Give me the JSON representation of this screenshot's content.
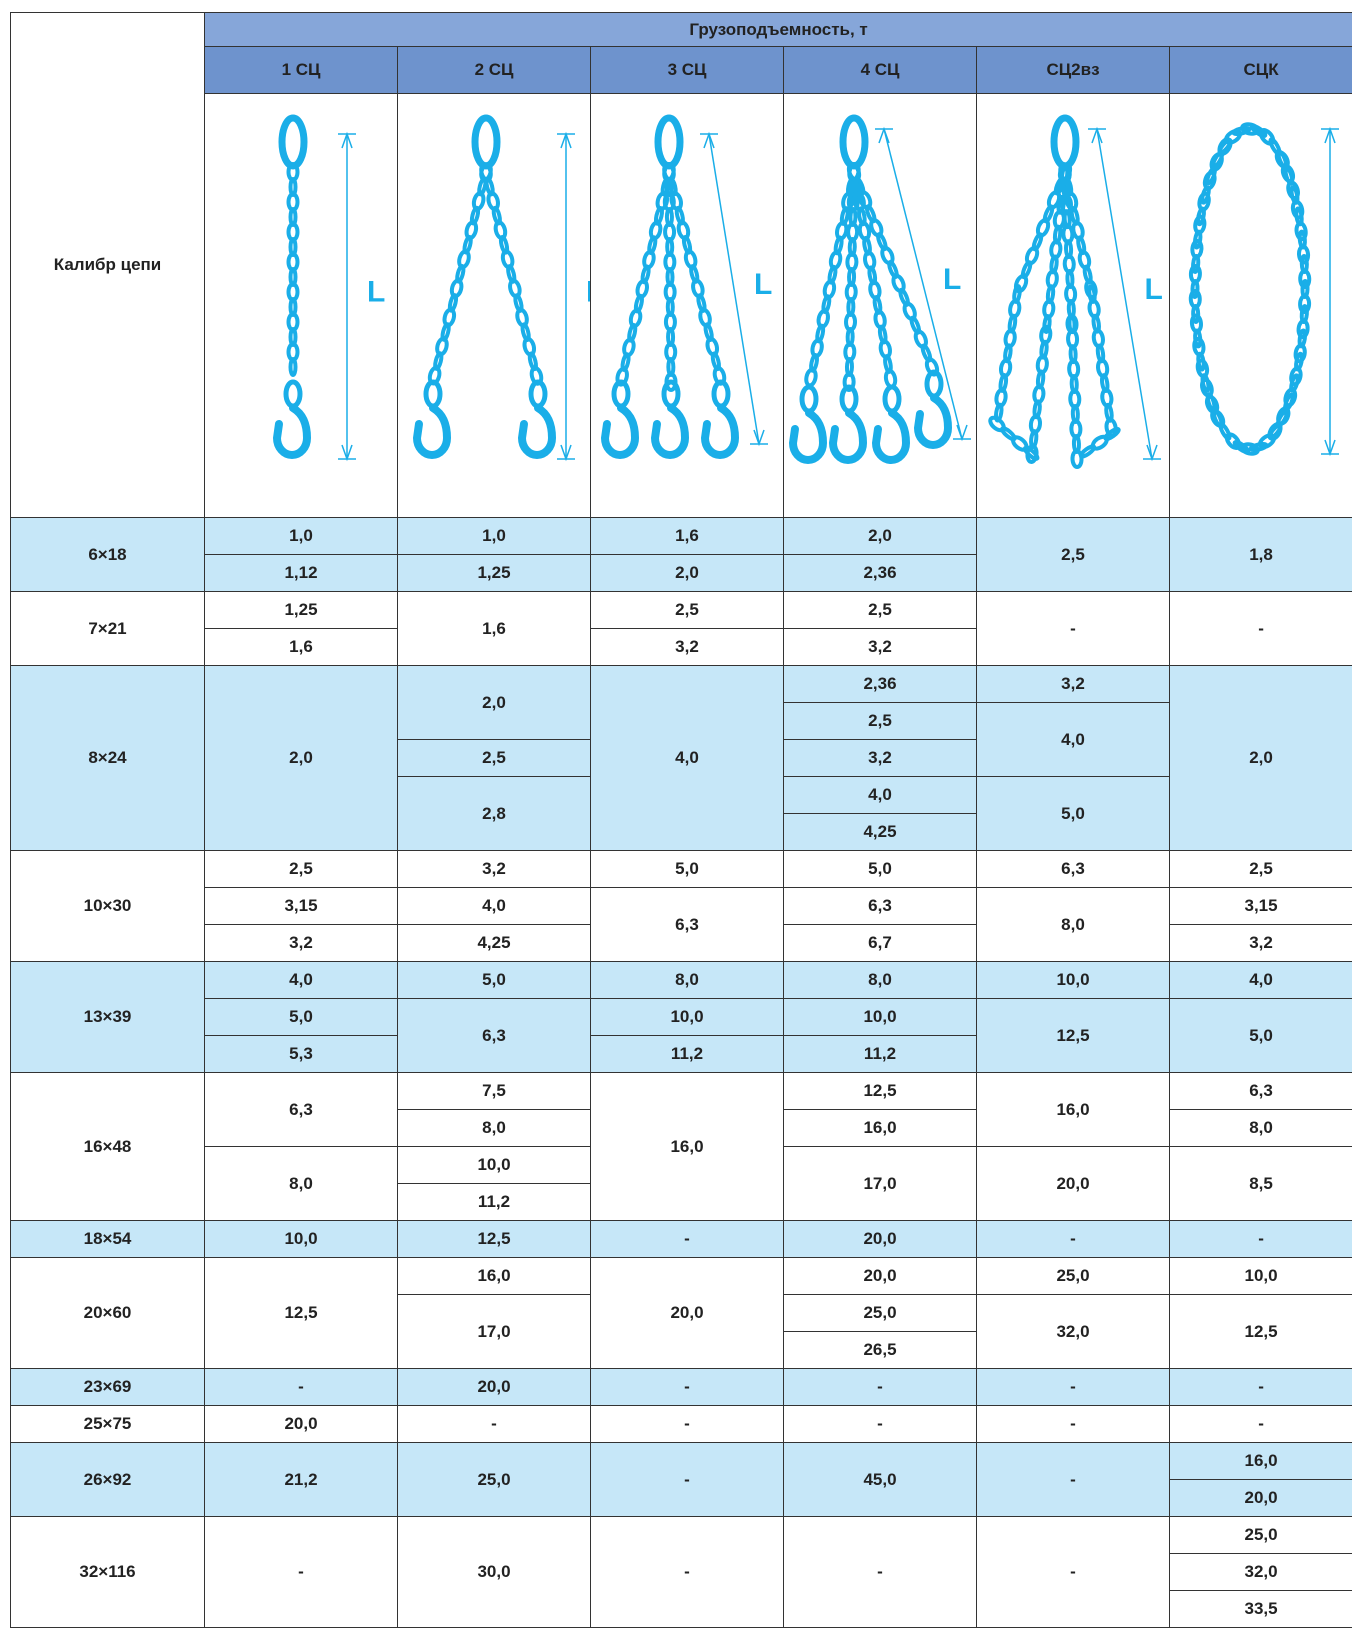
{
  "header": {
    "corner": "Калибр цепи",
    "group_title": "Грузоподъемность, т",
    "columns": [
      "1 СЦ",
      "2 СЦ",
      "3 СЦ",
      "4 СЦ",
      "СЦ2вз",
      "СЦК"
    ],
    "illustration_label": "L"
  },
  "table": {
    "groups": [
      {
        "caliber": "6×18",
        "rows": [
          [
            "1,0",
            "1,0",
            "1,6",
            "2,0",
            "2,5",
            "1,8"
          ],
          [
            "1,12",
            "1,25",
            "2,0",
            "2,36",
            null,
            null
          ]
        ]
      },
      {
        "caliber": "7×21",
        "rows": [
          [
            "1,25",
            "1,6",
            "2,5",
            "2,5",
            "-",
            "-"
          ],
          [
            "1,6",
            null,
            "3,2",
            "3,2",
            null,
            null
          ]
        ]
      },
      {
        "caliber": "8×24",
        "rows": [
          [
            "2,0",
            "2,0",
            "4,0",
            "2,36",
            "3,2",
            "2,0"
          ],
          [
            null,
            null,
            null,
            "2,5",
            "4,0",
            null
          ],
          [
            null,
            "2,5",
            null,
            "3,2",
            null,
            null
          ],
          [
            null,
            "2,8",
            null,
            "4,0",
            "5,0",
            null
          ],
          [
            null,
            null,
            null,
            "4,25",
            null,
            null
          ]
        ]
      },
      {
        "caliber": "10×30",
        "rows": [
          [
            "2,5",
            "3,2",
            "5,0",
            "5,0",
            "6,3",
            "2,5"
          ],
          [
            "3,15",
            "4,0",
            "6,3",
            "6,3",
            "8,0",
            "3,15"
          ],
          [
            "3,2",
            "4,25",
            null,
            "6,7",
            null,
            "3,2"
          ]
        ]
      },
      {
        "caliber": "13×39",
        "rows": [
          [
            "4,0",
            "5,0",
            "8,0",
            "8,0",
            "10,0",
            "4,0"
          ],
          [
            "5,0",
            "6,3",
            "10,0",
            "10,0",
            "12,5",
            "5,0"
          ],
          [
            "5,3",
            null,
            "11,2",
            "11,2",
            null,
            null
          ]
        ]
      },
      {
        "caliber": "16×48",
        "rows": [
          [
            "6,3",
            "7,5",
            "16,0",
            "12,5",
            "16,0",
            "6,3"
          ],
          [
            null,
            "8,0",
            null,
            "16,0",
            null,
            "8,0"
          ],
          [
            "8,0",
            "10,0",
            null,
            "17,0",
            "20,0",
            "8,5"
          ],
          [
            null,
            "11,2",
            null,
            null,
            null,
            null
          ]
        ]
      },
      {
        "caliber": "18×54",
        "rows": [
          [
            "10,0",
            "12,5",
            "-",
            "20,0",
            "-",
            "-"
          ]
        ]
      },
      {
        "caliber": "20×60",
        "rows": [
          [
            "12,5",
            "16,0",
            "20,0",
            "20,0",
            "25,0",
            "10,0"
          ],
          [
            null,
            "17,0",
            null,
            "25,0",
            "32,0",
            "12,5"
          ],
          [
            null,
            null,
            null,
            "26,5",
            null,
            null
          ]
        ]
      },
      {
        "caliber": "23×69",
        "rows": [
          [
            "-",
            "20,0",
            "-",
            "-",
            "-",
            "-"
          ]
        ]
      },
      {
        "caliber": "25×75",
        "rows": [
          [
            "20,0",
            "-",
            "-",
            "-",
            "-",
            "-"
          ]
        ]
      },
      {
        "caliber": "26×92",
        "rows": [
          [
            "21,2",
            "25,0",
            "-",
            "45,0",
            "-",
            "16,0"
          ],
          [
            null,
            null,
            null,
            null,
            null,
            "20,0"
          ]
        ]
      },
      {
        "caliber": "32×116",
        "rows": [
          [
            "-",
            "30,0",
            "-",
            "-",
            "-",
            "25,0"
          ],
          [
            null,
            null,
            null,
            null,
            null,
            "32,0"
          ],
          [
            null,
            null,
            null,
            null,
            null,
            "33,5"
          ]
        ]
      }
    ]
  }
}
